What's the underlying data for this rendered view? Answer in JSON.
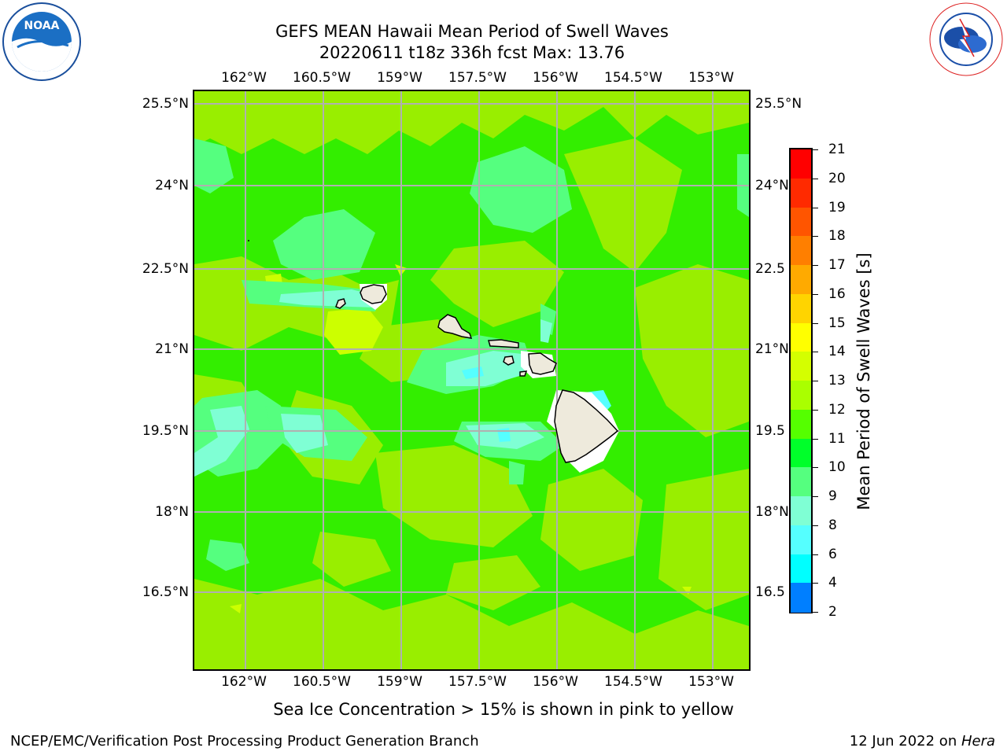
{
  "header": {
    "title_line1": "GEFS MEAN Hawaii Mean Period of Swell Waves",
    "title_line2": "20220611 t18z 336h fcst   Max: 13.76"
  },
  "logos": {
    "noaa_text": "NOAA",
    "nws_text": "NATIONAL WEATHER SERVICE"
  },
  "map": {
    "lon_labels": [
      "162°W",
      "160.5°W",
      "159°W",
      "157.5°W",
      "156°W",
      "154.5°W",
      "153°W"
    ],
    "lat_labels": [
      "25.5°N",
      "24°N",
      "22.5°N",
      "21°N",
      "19.5°N",
      "18°N",
      "16.5°N"
    ],
    "lat_labels_right": [
      "25.5°N",
      "24°N",
      "22.5",
      "21°N",
      "19.5",
      "18°N",
      "16.5"
    ],
    "background_color": "#33ee00"
  },
  "colorbar": {
    "label": "Mean Period of Swell Waves [s]",
    "ticks": [
      "21",
      "20",
      "19",
      "18",
      "17",
      "16",
      "15",
      "14",
      "13",
      "12",
      "11",
      "10",
      "9",
      "8",
      "6",
      "4",
      "2"
    ],
    "colors": [
      "#ff0000",
      "#ff2a00",
      "#ff5500",
      "#ff7f00",
      "#ffaa00",
      "#ffd400",
      "#ffff00",
      "#d4ff00",
      "#aaff00",
      "#55ff00",
      "#00ff2a",
      "#55ff7f",
      "#7fffd4",
      "#55ffff",
      "#00ffff",
      "#007fff",
      "#0000ff"
    ]
  },
  "caption": "Sea Ice Concentration > 15% is shown in pink to yellow",
  "footer": {
    "left": "NCEP/EMC/Verification Post Processing Product Generation Branch",
    "right_date": "12 Jun 2022 on ",
    "right_host": "Hera"
  }
}
